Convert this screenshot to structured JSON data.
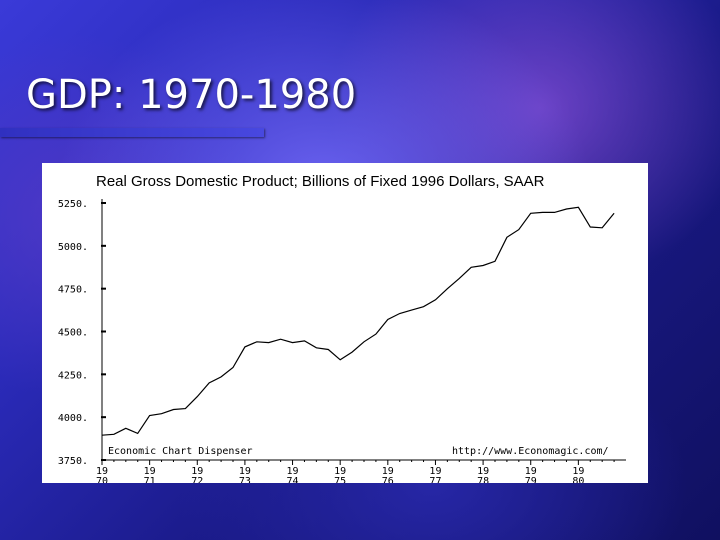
{
  "slide": {
    "title": "GDP: 1970-1980"
  },
  "chart_data": {
    "type": "line",
    "title": "Real Gross Domestic Product; Billions of Fixed 1996 Dollars, SAAR",
    "xlabel": "",
    "ylabel": "",
    "ylim": [
      3750,
      5250
    ],
    "xlim": [
      1970.0,
      1981.0
    ],
    "y_ticks": [
      "3750.",
      "4000.",
      "4250.",
      "4500.",
      "4750.",
      "5000.",
      "5250."
    ],
    "y_tick_values": [
      3750,
      4000,
      4250,
      4500,
      4750,
      5000,
      5250
    ],
    "x_ticks": [
      {
        "top": "19",
        "bottom": "70",
        "value": 1970
      },
      {
        "top": "19",
        "bottom": "71",
        "value": 1971
      },
      {
        "top": "19",
        "bottom": "72",
        "value": 1972
      },
      {
        "top": "19",
        "bottom": "73",
        "value": 1973
      },
      {
        "top": "19",
        "bottom": "74",
        "value": 1974
      },
      {
        "top": "19",
        "bottom": "75",
        "value": 1975
      },
      {
        "top": "19",
        "bottom": "76",
        "value": 1976
      },
      {
        "top": "19",
        "bottom": "77",
        "value": 1977
      },
      {
        "top": "19",
        "bottom": "78",
        "value": 1978
      },
      {
        "top": "19",
        "bottom": "79",
        "value": 1979
      },
      {
        "top": "19",
        "bottom": "80",
        "value": 1980
      }
    ],
    "grid": false,
    "annotations": [
      "Economic Chart Dispenser",
      "http://www.Economagic.com/"
    ],
    "series": [
      {
        "color": "#000000",
        "x": [
          1970.0,
          1970.25,
          1970.5,
          1970.75,
          1971.0,
          1971.25,
          1971.5,
          1971.75,
          1972.0,
          1972.25,
          1972.5,
          1972.75,
          1973.0,
          1973.25,
          1973.5,
          1973.75,
          1974.0,
          1974.25,
          1974.5,
          1974.75,
          1975.0,
          1975.25,
          1975.5,
          1975.75,
          1976.0,
          1976.25,
          1976.5,
          1976.75,
          1977.0,
          1977.25,
          1977.5,
          1977.75,
          1978.0,
          1978.25,
          1978.5,
          1978.75,
          1979.0,
          1979.25,
          1979.5,
          1979.75,
          1980.0,
          1980.25,
          1980.5,
          1980.75
        ],
        "y": [
          3895,
          3900,
          3935,
          3905,
          4010,
          4020,
          4045,
          4050,
          4120,
          4200,
          4235,
          4290,
          4410,
          4440,
          4435,
          4455,
          4435,
          4445,
          4405,
          4395,
          4335,
          4380,
          4440,
          4485,
          4570,
          4605,
          4625,
          4645,
          4685,
          4750,
          4810,
          4875,
          4885,
          4910,
          5050,
          5095,
          5190,
          5195,
          5195,
          5215,
          5225,
          5110,
          5105,
          5190
        ]
      }
    ]
  }
}
